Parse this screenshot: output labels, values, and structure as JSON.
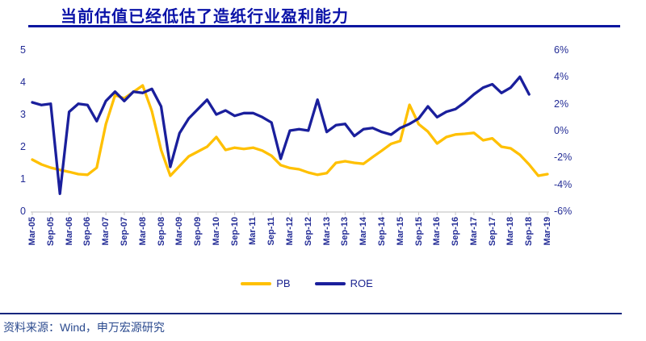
{
  "title": "当前估值已经低估了造纸行业盈利能力",
  "source": "资料来源：Wind，申万宏源研究",
  "legend": {
    "pb_label": "PB",
    "roe_label": "ROE"
  },
  "colors": {
    "pb_line": "#FFC000",
    "roe_line": "#1a1f9c",
    "title_text": "#0a12a8",
    "axis_text": "#232c96",
    "axis_line": "#d2d2d2",
    "tick": "#c6c6c6"
  },
  "chart_data": {
    "type": "line",
    "title": "当前估值已经低估了造纸行业盈利能力",
    "x_labels": [
      "Mar-05",
      "Sep-05",
      "Mar-06",
      "Sep-06",
      "Mar-07",
      "Sep-07",
      "Mar-08",
      "Sep-08",
      "Mar-09",
      "Sep-09",
      "Mar-10",
      "Sep-10",
      "Mar-11",
      "Sep-11",
      "Mar-12",
      "Sep-12",
      "Mar-13",
      "Sep-13",
      "Mar-14",
      "Sep-14",
      "Mar-15",
      "Sep-15",
      "Mar-16",
      "Sep-16",
      "Mar-17",
      "Sep-17",
      "Mar-18",
      "Sep-18",
      "Mar-19"
    ],
    "x_quarters": [
      "Mar-05",
      "Jun-05",
      "Sep-05",
      "Dec-05",
      "Mar-06",
      "Jun-06",
      "Sep-06",
      "Dec-06",
      "Mar-07",
      "Jun-07",
      "Sep-07",
      "Dec-07",
      "Mar-08",
      "Jun-08",
      "Sep-08",
      "Dec-08",
      "Mar-09",
      "Jun-09",
      "Sep-09",
      "Dec-09",
      "Mar-10",
      "Jun-10",
      "Sep-10",
      "Dec-10",
      "Mar-11",
      "Jun-11",
      "Sep-11",
      "Dec-11",
      "Mar-12",
      "Jun-12",
      "Sep-12",
      "Dec-12",
      "Mar-13",
      "Jun-13",
      "Sep-13",
      "Dec-13",
      "Mar-14",
      "Jun-14",
      "Sep-14",
      "Dec-14",
      "Mar-15",
      "Jun-15",
      "Sep-15",
      "Dec-15",
      "Mar-16",
      "Jun-16",
      "Sep-16",
      "Dec-16",
      "Mar-17",
      "Jun-17",
      "Sep-17",
      "Dec-17",
      "Mar-18",
      "Jun-18",
      "Sep-18",
      "Dec-18",
      "Mar-19"
    ],
    "points_per_label": 2,
    "series": [
      {
        "name": "PB",
        "axis": "left",
        "color": "#FFC000",
        "values": [
          1.6,
          1.45,
          1.35,
          1.28,
          1.22,
          1.15,
          1.13,
          1.35,
          2.7,
          3.6,
          3.5,
          3.7,
          3.9,
          3.1,
          1.9,
          1.1,
          1.4,
          1.7,
          1.85,
          2.0,
          2.3,
          1.9,
          1.97,
          1.93,
          1.97,
          1.88,
          1.72,
          1.43,
          1.34,
          1.3,
          1.2,
          1.13,
          1.18,
          1.5,
          1.55,
          1.5,
          1.47,
          1.68,
          1.88,
          2.09,
          2.18,
          3.3,
          2.7,
          2.47,
          2.1,
          2.3,
          2.38,
          2.4,
          2.43,
          2.2,
          2.26,
          2.0,
          1.95,
          1.75,
          1.45,
          1.1,
          1.15
        ]
      },
      {
        "name": "ROE",
        "axis": "right",
        "unit": "%",
        "color": "#1a1f9c",
        "values": [
          2.1,
          1.9,
          2.0,
          -4.7,
          1.4,
          2.0,
          1.9,
          0.7,
          2.2,
          2.9,
          2.2,
          2.9,
          2.8,
          3.1,
          1.8,
          -2.7,
          -0.2,
          0.9,
          1.6,
          2.3,
          1.2,
          1.5,
          1.1,
          1.3,
          1.3,
          1.0,
          0.6,
          -2.1,
          0.0,
          0.1,
          0.0,
          2.3,
          -0.1,
          0.4,
          0.5,
          -0.4,
          0.1,
          0.2,
          -0.1,
          -0.3,
          0.2,
          0.5,
          0.9,
          1.8,
          1.0,
          1.4,
          1.6,
          2.1,
          2.7,
          3.2,
          3.45,
          2.8,
          3.2,
          4.0,
          2.7,
          null,
          null
        ]
      }
    ],
    "left_axis": {
      "ticks": [
        "5",
        "4",
        "3",
        "2",
        "1",
        "0"
      ],
      "range": [
        0,
        5
      ]
    },
    "right_axis": {
      "ticks": [
        "6%",
        "4%",
        "2%",
        "0%",
        "-2%",
        "-4%",
        "-6%"
      ],
      "range": [
        -6,
        6
      ]
    },
    "grid": false,
    "legend_position": "bottom"
  }
}
